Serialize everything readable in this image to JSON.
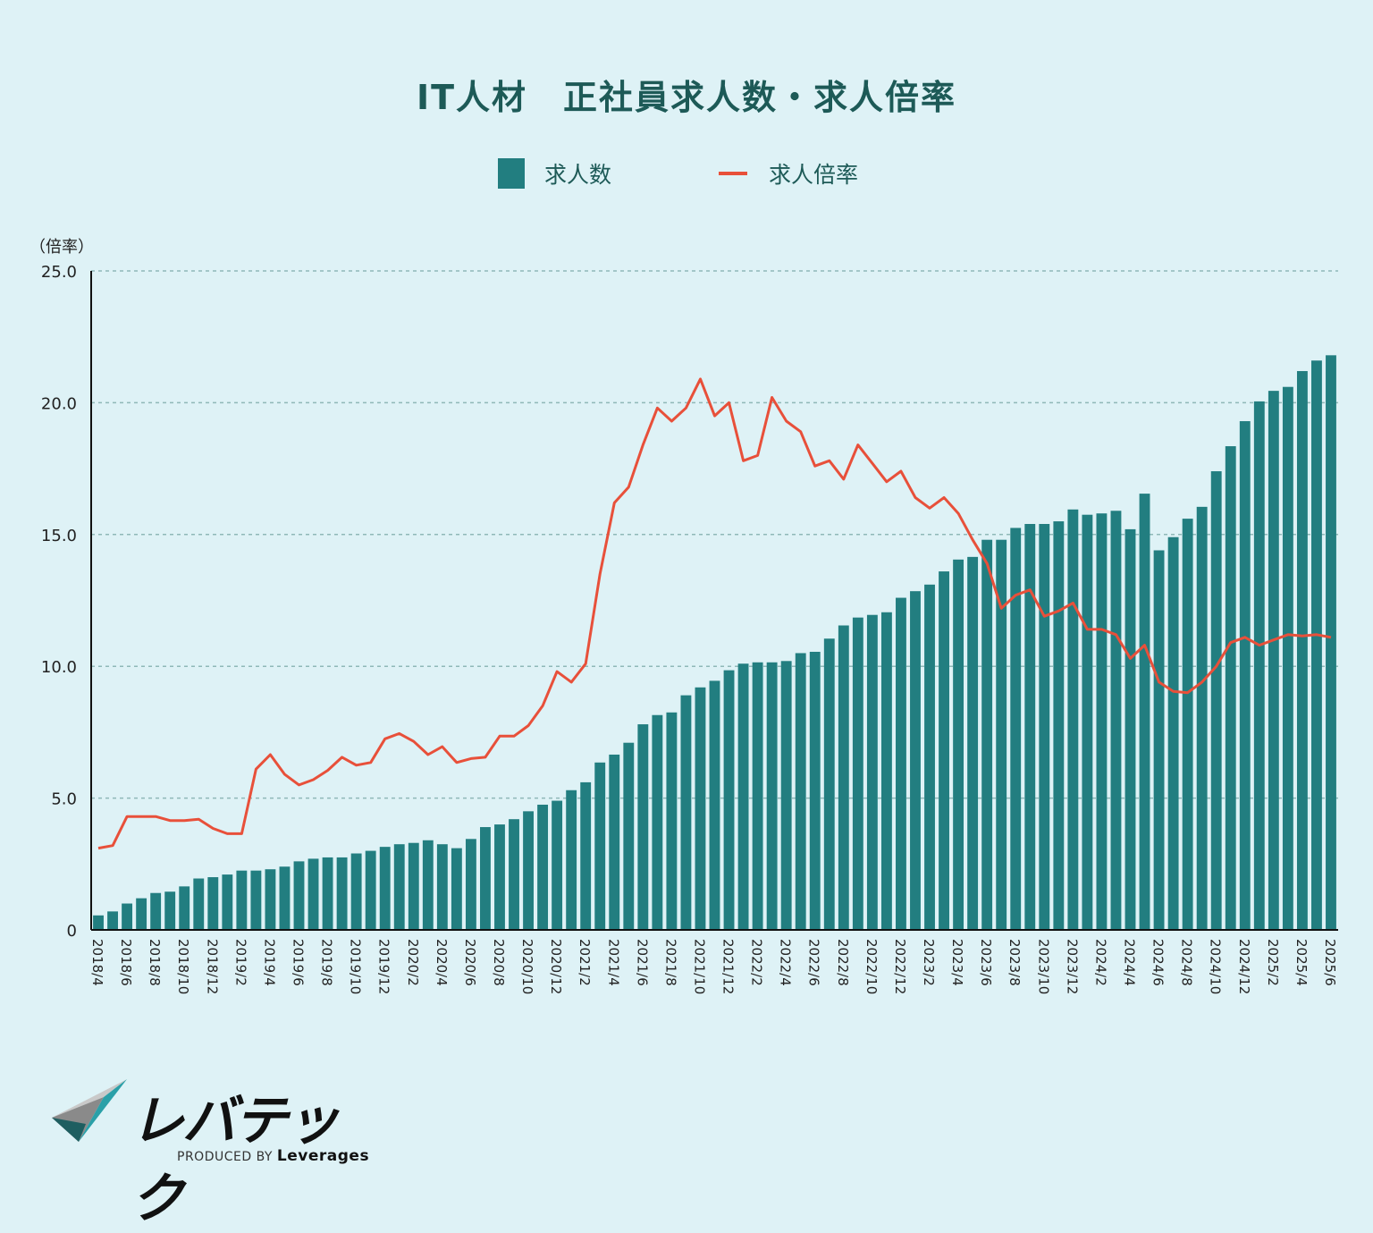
{
  "title": "IT人材　正社員求人数・求人倍率",
  "legend": {
    "bar_label": "求人数",
    "line_label": "求人倍率",
    "bar_color": "#227e80",
    "line_color": "#e8503a"
  },
  "y_axis_unit": "（倍率）",
  "logo": {
    "name": "レバテック",
    "produced_by": "PRODUCED BY",
    "company": "Leverages"
  },
  "chart_data": {
    "type": "bar+line",
    "title": "IT人材　正社員求人数・求人倍率",
    "xlabel": "",
    "ylabel": "倍率",
    "ylim": [
      0,
      25
    ],
    "yticks": [
      "0",
      "5.0",
      "10.0",
      "15.0",
      "20.0",
      "25.0"
    ],
    "grid": "horizontal dashed",
    "legend_position": "top-center",
    "x": [
      "2018/4",
      "2018/5",
      "2018/6",
      "2018/7",
      "2018/8",
      "2018/9",
      "2018/10",
      "2018/11",
      "2018/12",
      "2019/1",
      "2019/2",
      "2019/3",
      "2019/4",
      "2019/5",
      "2019/6",
      "2019/7",
      "2019/8",
      "2019/9",
      "2019/10",
      "2019/11",
      "2019/12",
      "2020/1",
      "2020/2",
      "2020/3",
      "2020/4",
      "2020/5",
      "2020/6",
      "2020/7",
      "2020/8",
      "2020/9",
      "2020/10",
      "2020/11",
      "2020/12",
      "2021/1",
      "2021/2",
      "2021/3",
      "2021/4",
      "2021/5",
      "2021/6",
      "2021/7",
      "2021/8",
      "2021/9",
      "2021/10",
      "2021/11",
      "2021/12",
      "2022/1",
      "2022/2",
      "2022/3",
      "2022/4",
      "2022/5",
      "2022/6",
      "2022/7",
      "2022/8",
      "2022/9",
      "2022/10",
      "2022/11",
      "2022/12",
      "2023/1",
      "2023/2",
      "2023/3",
      "2023/4",
      "2023/5",
      "2023/6",
      "2023/7",
      "2023/8",
      "2023/9",
      "2023/10",
      "2023/11",
      "2023/12",
      "2024/1",
      "2024/2",
      "2024/3",
      "2024/4",
      "2024/5",
      "2024/6",
      "2024/7",
      "2024/8",
      "2024/9",
      "2024/10",
      "2024/11",
      "2024/12",
      "2025/1",
      "2025/2",
      "2025/3",
      "2025/4",
      "2025/5",
      "2025/6"
    ],
    "x_tick_labels": [
      "2018/4",
      "2018/6",
      "2018/8",
      "2018/10",
      "2018/12",
      "2019/2",
      "2019/4",
      "2019/6",
      "2019/8",
      "2019/10",
      "2019/12",
      "2020/2",
      "2020/4",
      "2020/6",
      "2020/8",
      "2020/10",
      "2020/12",
      "2021/2",
      "2021/4",
      "2021/6",
      "2021/8",
      "2021/10",
      "2021/12",
      "2022/2",
      "2022/4",
      "2022/6",
      "2022/8",
      "2022/10",
      "2022/12",
      "2023/2",
      "2023/4",
      "2023/6",
      "2023/8",
      "2023/10",
      "2023/12",
      "2024/2",
      "2024/4",
      "2024/6",
      "2024/8",
      "2024/10",
      "2024/12",
      "2025/2",
      "2025/4",
      "2025/6"
    ],
    "series": [
      {
        "name": "求人数",
        "type": "bar",
        "note": "relative height in ratio-axis units (no count axis shown)",
        "values": [
          0.55,
          0.7,
          1.0,
          1.2,
          1.4,
          1.45,
          1.65,
          1.95,
          2.0,
          2.1,
          2.25,
          2.25,
          2.3,
          2.4,
          2.6,
          2.7,
          2.75,
          2.75,
          2.9,
          3.0,
          3.15,
          3.25,
          3.3,
          3.4,
          3.25,
          3.1,
          3.45,
          3.9,
          4.0,
          4.2,
          4.5,
          4.75,
          4.9,
          5.3,
          5.6,
          6.35,
          6.65,
          7.1,
          7.8,
          8.15,
          8.25,
          8.9,
          9.2,
          9.45,
          9.85,
          10.1,
          10.15,
          10.15,
          10.2,
          10.5,
          10.55,
          11.05,
          11.55,
          11.85,
          11.95,
          12.05,
          12.6,
          12.85,
          13.1,
          13.6,
          14.05,
          14.15,
          14.8,
          14.8,
          15.25,
          15.4,
          15.4,
          15.5,
          15.95,
          15.75,
          15.8,
          15.9,
          15.2,
          16.55,
          14.4,
          14.9,
          15.6,
          16.05,
          17.4,
          18.35,
          19.3,
          20.05,
          20.45,
          20.6,
          21.2,
          21.6,
          21.8
        ]
      },
      {
        "name": "求人倍率",
        "type": "line",
        "values": [
          3.1,
          3.2,
          4.3,
          4.3,
          4.3,
          4.15,
          4.15,
          4.2,
          3.85,
          3.65,
          3.65,
          6.1,
          6.65,
          5.9,
          5.5,
          5.7,
          6.05,
          6.55,
          6.25,
          6.35,
          7.25,
          7.45,
          7.15,
          6.65,
          6.95,
          6.35,
          6.5,
          6.55,
          7.35,
          7.35,
          7.75,
          8.5,
          9.8,
          9.4,
          10.1,
          13.5,
          16.2,
          16.8,
          18.4,
          19.8,
          19.3,
          19.8,
          20.9,
          19.5,
          20.0,
          17.8,
          18.0,
          20.2,
          19.3,
          18.9,
          17.6,
          17.8,
          17.1,
          18.4,
          17.7,
          17.0,
          17.4,
          16.4,
          16.0,
          16.4,
          15.8,
          14.8,
          13.9,
          12.2,
          12.7,
          12.9,
          11.9,
          12.1,
          12.4,
          11.4,
          11.4,
          11.2,
          10.3,
          10.8,
          9.4,
          9.05,
          9.0,
          9.4,
          10.0,
          10.9,
          11.1,
          10.8,
          11.0,
          11.2,
          11.15,
          11.2,
          11.1
        ]
      }
    ]
  }
}
